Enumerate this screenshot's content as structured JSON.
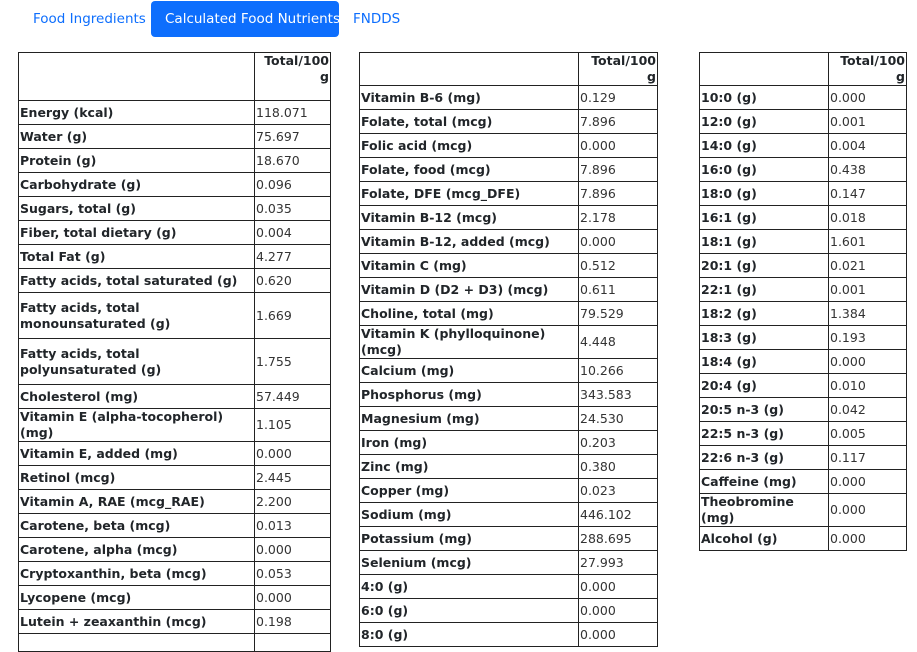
{
  "tabs": [
    {
      "label": "Food Ingredients",
      "active": false
    },
    {
      "label": "Calculated Food Nutrients",
      "active": true
    },
    {
      "label": "FNDDS",
      "active": false
    }
  ],
  "colors": {
    "accent": "#0d6efd",
    "border": "#222222"
  },
  "tables": [
    {
      "header": "Total/100 g",
      "rows": [
        {
          "name": "Energy (kcal)",
          "value": "118.071"
        },
        {
          "name": "Water (g)",
          "value": "75.697"
        },
        {
          "name": "Protein (g)",
          "value": "18.670"
        },
        {
          "name": "Carbohydrate (g)",
          "value": "0.096"
        },
        {
          "name": "Sugars, total (g)",
          "value": "0.035"
        },
        {
          "name": "Fiber, total dietary (g)",
          "value": "0.004"
        },
        {
          "name": "Total Fat (g)",
          "value": "4.277"
        },
        {
          "name": "Fatty acids, total saturated (g)",
          "value": "0.620"
        },
        {
          "name": "Fatty acids, total monounsaturated (g)",
          "value": "1.669"
        },
        {
          "name": "Fatty acids, total polyunsaturated (g)",
          "value": "1.755"
        },
        {
          "name": "Cholesterol (mg)",
          "value": "57.449"
        },
        {
          "name": "Vitamin E (alpha-tocopherol) (mg)",
          "value": "1.105"
        },
        {
          "name": "Vitamin E, added (mg)",
          "value": "0.000"
        },
        {
          "name": "Retinol (mcg)",
          "value": "2.445"
        },
        {
          "name": "Vitamin A, RAE (mcg_RAE)",
          "value": "2.200"
        },
        {
          "name": "Carotene, beta (mcg)",
          "value": "0.013"
        },
        {
          "name": "Carotene, alpha (mcg)",
          "value": "0.000"
        },
        {
          "name": "Cryptoxanthin, beta (mcg)",
          "value": "0.053"
        },
        {
          "name": "Lycopene (mcg)",
          "value": "0.000"
        },
        {
          "name": "Lutein + zeaxanthin (mcg)",
          "value": "0.198"
        },
        {
          "name": "",
          "value": ""
        }
      ]
    },
    {
      "header": "Total/100 g",
      "rows": [
        {
          "name": "Vitamin B-6 (mg)",
          "value": "0.129"
        },
        {
          "name": "Folate, total (mcg)",
          "value": "7.896"
        },
        {
          "name": "Folic acid (mcg)",
          "value": "0.000"
        },
        {
          "name": "Folate, food (mcg)",
          "value": "7.896"
        },
        {
          "name": "Folate, DFE (mcg_DFE)",
          "value": "7.896"
        },
        {
          "name": "Vitamin B-12 (mcg)",
          "value": "2.178"
        },
        {
          "name": "Vitamin B-12, added (mcg)",
          "value": "0.000"
        },
        {
          "name": "Vitamin C (mg)",
          "value": "0.512"
        },
        {
          "name": "Vitamin D (D2 + D3) (mcg)",
          "value": "0.611"
        },
        {
          "name": "Choline, total (mg)",
          "value": "79.529"
        },
        {
          "name": "Vitamin K (phylloquinone) (mcg)",
          "value": "4.448"
        },
        {
          "name": "Calcium (mg)",
          "value": "10.266"
        },
        {
          "name": "Phosphorus (mg)",
          "value": "343.583"
        },
        {
          "name": "Magnesium (mg)",
          "value": "24.530"
        },
        {
          "name": "Iron (mg)",
          "value": "0.203"
        },
        {
          "name": "Zinc (mg)",
          "value": "0.380"
        },
        {
          "name": "Copper (mg)",
          "value": "0.023"
        },
        {
          "name": "Sodium (mg)",
          "value": "446.102"
        },
        {
          "name": "Potassium (mg)",
          "value": "288.695"
        },
        {
          "name": "Selenium (mcg)",
          "value": "27.993"
        },
        {
          "name": "4:0 (g)",
          "value": "0.000"
        },
        {
          "name": "6:0 (g)",
          "value": "0.000"
        },
        {
          "name": "8:0 (g)",
          "value": "0.000"
        }
      ]
    },
    {
      "header": "Total/100 g",
      "rows": [
        {
          "name": "10:0 (g)",
          "value": "0.000"
        },
        {
          "name": "12:0 (g)",
          "value": "0.001"
        },
        {
          "name": "14:0 (g)",
          "value": "0.004"
        },
        {
          "name": "16:0 (g)",
          "value": "0.438"
        },
        {
          "name": "18:0 (g)",
          "value": "0.147"
        },
        {
          "name": "16:1 (g)",
          "value": "0.018"
        },
        {
          "name": "18:1 (g)",
          "value": "1.601"
        },
        {
          "name": "20:1 (g)",
          "value": "0.021"
        },
        {
          "name": "22:1 (g)",
          "value": "0.001"
        },
        {
          "name": "18:2 (g)",
          "value": "1.384"
        },
        {
          "name": "18:3 (g)",
          "value": "0.193"
        },
        {
          "name": "18:4 (g)",
          "value": "0.000"
        },
        {
          "name": "20:4 (g)",
          "value": "0.010"
        },
        {
          "name": "20:5 n-3 (g)",
          "value": "0.042"
        },
        {
          "name": "22:5 n-3 (g)",
          "value": "0.005"
        },
        {
          "name": "22:6 n-3 (g)",
          "value": "0.117"
        },
        {
          "name": "Caffeine (mg)",
          "value": "0.000"
        },
        {
          "name": "Theobromine (mg)",
          "value": "0.000"
        },
        {
          "name": "Alcohol (g)",
          "value": "0.000"
        }
      ]
    }
  ]
}
